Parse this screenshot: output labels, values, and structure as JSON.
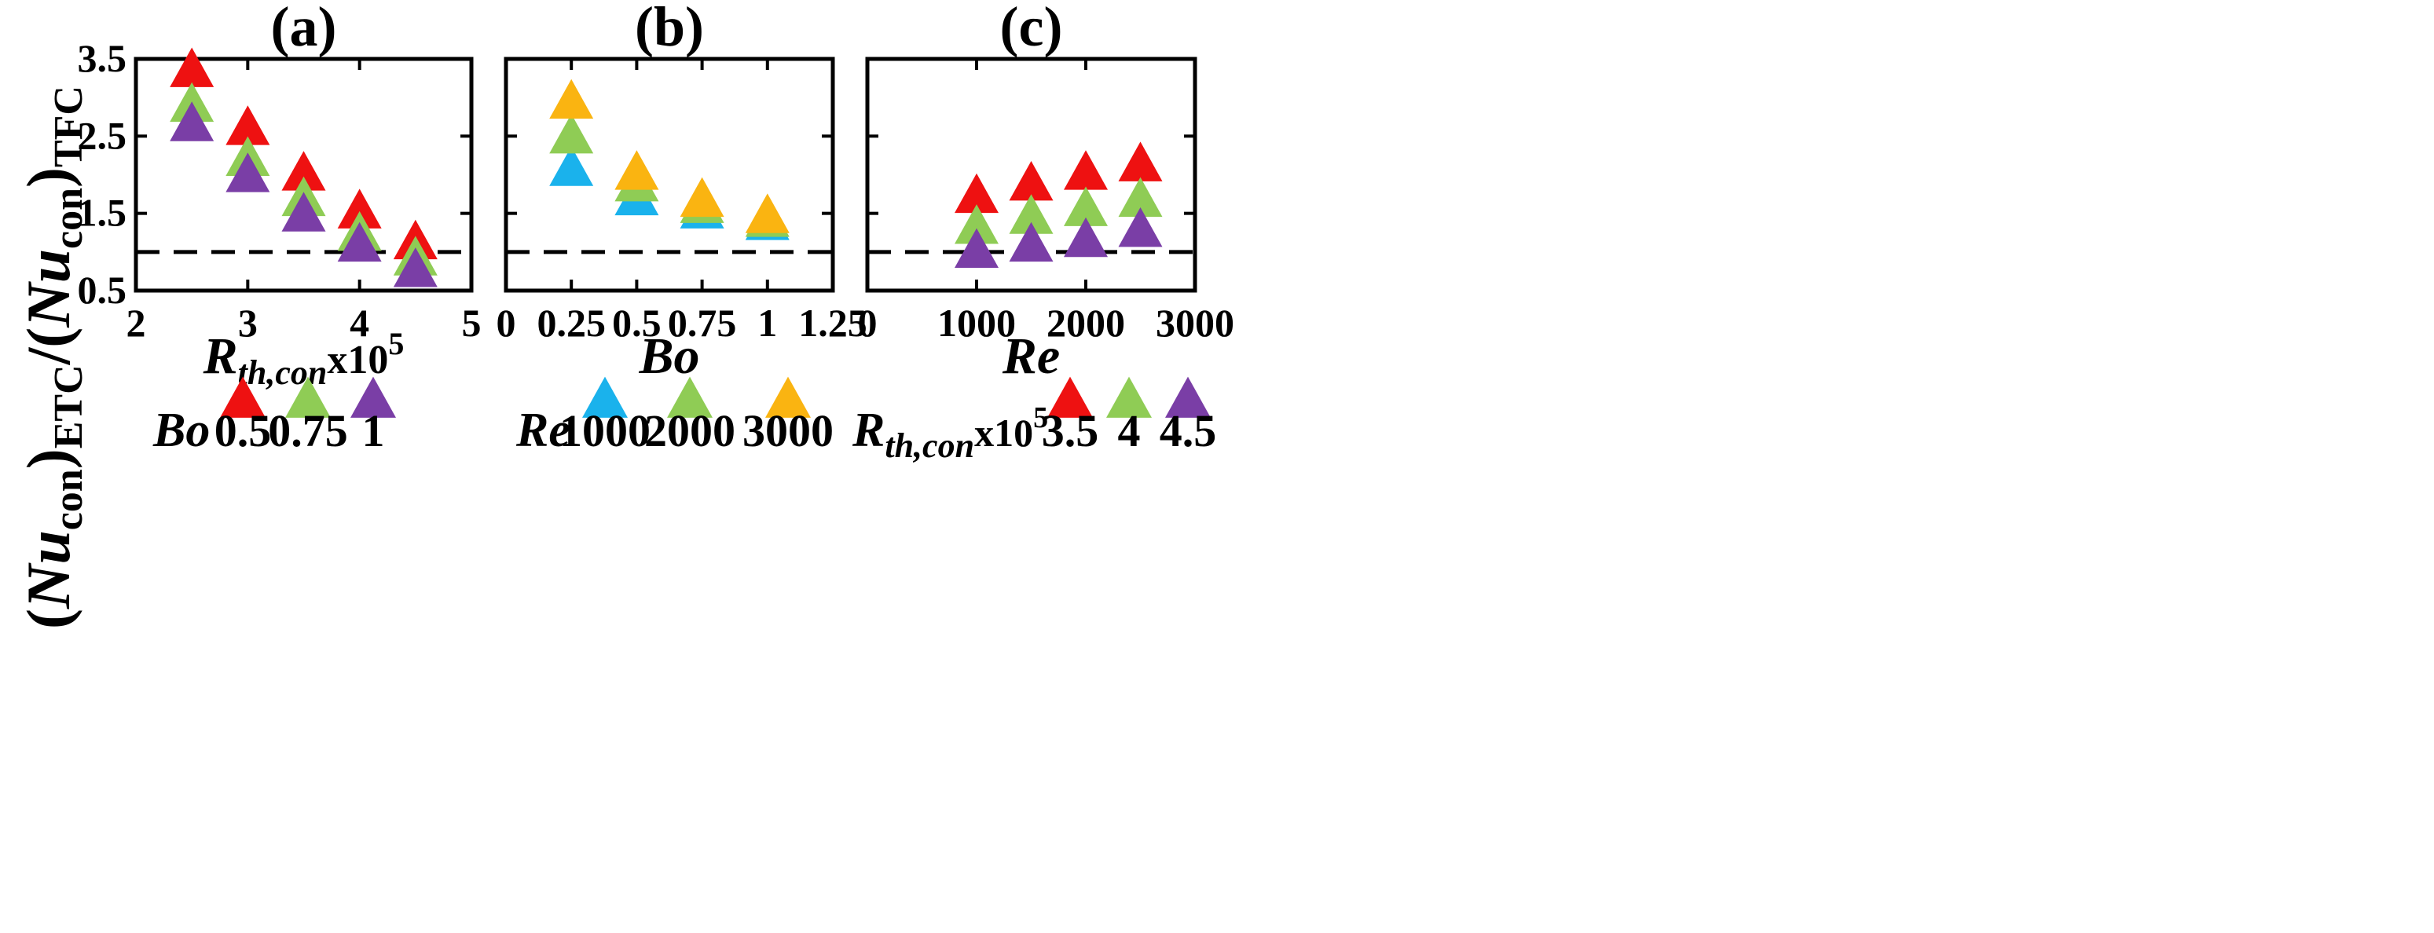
{
  "y_axis_label": {
    "open": "(",
    "nu": "Nu",
    "con_sub": "con",
    "mid": ")",
    "etc_sub": "ETC",
    "slash": "/(",
    "nu2": "Nu",
    "con_sub2": "con",
    "close": ")",
    "tfc_sub": "TFC"
  },
  "chart_data": [
    {
      "type": "scatter",
      "title": "(a)",
      "xlabel": {
        "main": "R",
        "sub": "th,con",
        "rest": "x10",
        "sup": "5"
      },
      "ylabel": "(Nu_con)_ETC/(Nu_con)_TFC",
      "xlim": [
        2,
        5
      ],
      "ylim": [
        0.5,
        3.5
      ],
      "xticks": [
        "2",
        "3",
        "4",
        "5"
      ],
      "yticks": [
        "0.5",
        "1.5",
        "2.5",
        "3.5"
      ],
      "reference_line_y": 1.0,
      "legend": {
        "title": "Bo",
        "placement": "bottom"
      },
      "x": [
        2.5,
        3.0,
        3.5,
        4.0,
        4.5
      ],
      "series": [
        {
          "name": "0.5",
          "color": "#ee1111",
          "values": [
            3.33,
            2.58,
            1.99,
            1.5,
            1.1
          ]
        },
        {
          "name": "0.75",
          "color": "#8fcc55",
          "values": [
            2.88,
            2.18,
            1.66,
            1.21,
            0.89
          ]
        },
        {
          "name": "1",
          "color": "#7a3ea6",
          "values": [
            2.63,
            1.97,
            1.46,
            1.07,
            0.74
          ]
        }
      ]
    },
    {
      "type": "scatter",
      "title": "(b)",
      "xlabel": {
        "main": "Bo"
      },
      "xlim": [
        0,
        1.25
      ],
      "ylim": [
        0.5,
        3.5
      ],
      "xticks": [
        "0",
        "0.25",
        "0.5",
        "0.75",
        "1",
        "1.25"
      ],
      "reference_line_y": 1.0,
      "legend": {
        "title": "Re",
        "placement": "bottom"
      },
      "x": [
        0.25,
        0.5,
        0.75,
        1.0
      ],
      "series": [
        {
          "name": "1000",
          "color": "#1ab2ec",
          "values": [
            2.05,
            1.67,
            1.5,
            1.35
          ]
        },
        {
          "name": "2000",
          "color": "#8fcc55",
          "values": [
            2.47,
            1.85,
            1.57,
            1.39
          ]
        },
        {
          "name": "3000",
          "color": "#fab411",
          "values": [
            2.92,
            2.0,
            1.65,
            1.44
          ]
        }
      ]
    },
    {
      "type": "scatter",
      "title": "(c)",
      "xlabel": {
        "main": "Re"
      },
      "xlim": [
        0,
        3000
      ],
      "ylim": [
        0.5,
        3.5
      ],
      "xticks": [
        "0",
        "1000",
        "2000",
        "3000"
      ],
      "xtick_values": [
        0,
        1000,
        2000,
        3000
      ],
      "reference_line_y": 1.0,
      "legend": {
        "title_main": "R",
        "title_sub": "th,con",
        "title_rest": "x10",
        "title_sup": "5",
        "placement": "bottom"
      },
      "x": [
        1000,
        1500,
        2000,
        2500
      ],
      "series": [
        {
          "name": "3.5",
          "color": "#ee1111",
          "values": [
            1.7,
            1.86,
            2.0,
            2.11
          ]
        },
        {
          "name": "4",
          "color": "#8fcc55",
          "values": [
            1.3,
            1.43,
            1.53,
            1.65
          ]
        },
        {
          "name": "4.5",
          "color": "#7a3ea6",
          "values": [
            0.99,
            1.07,
            1.13,
            1.26
          ]
        }
      ]
    }
  ]
}
